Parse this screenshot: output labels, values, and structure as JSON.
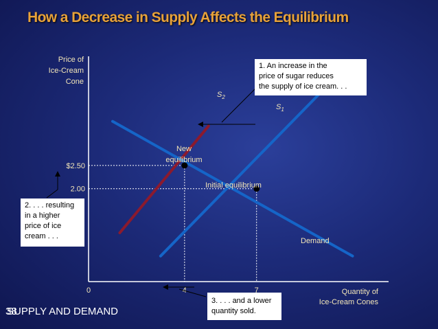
{
  "title": "How a Decrease in Supply Affects the Equilibrium",
  "chart_data": {
    "type": "line",
    "ylabel_lines": [
      "Price of",
      "Ice-Cream",
      "Cone"
    ],
    "xlabel_lines": [
      "Quantity of",
      "Ice-Cream Cones"
    ],
    "x_ticks": [
      "0",
      "4",
      "7"
    ],
    "y_ticks": [
      "$2.50",
      "2.00"
    ],
    "series": [
      {
        "name": "S2",
        "color": "#8b1a2e",
        "points": [
          [
            1.3,
            1.05
          ],
          [
            5.0,
            3.35
          ]
        ]
      },
      {
        "name": "S1",
        "color": "#1565c8",
        "points": [
          [
            3.0,
            0.55
          ],
          [
            10.2,
            4.35
          ]
        ]
      },
      {
        "name": "Demand",
        "color": "#1565c8",
        "points": [
          [
            1.0,
            3.45
          ],
          [
            11.0,
            0.55
          ]
        ]
      }
    ],
    "points": [
      {
        "label": "New equilibrium",
        "label_lines": [
          "New",
          "equilibrium"
        ],
        "x": 4,
        "y": 2.5
      },
      {
        "label": "Initial equilibrium",
        "x": 7,
        "y": 2.0
      }
    ],
    "curve_labels": {
      "s2": "S",
      "s2_sub": "2",
      "s1": "S",
      "s1_sub": "1",
      "demand": "Demand"
    },
    "axis_range": {
      "x": [
        0,
        12.5
      ],
      "y": [
        0,
        4.85
      ]
    },
    "annotations": {
      "callout1": [
        "1. An increase in the",
        "price of sugar reduces",
        "the supply of ice cream. . ."
      ],
      "callout2": [
        "2. . . . resulting",
        "in a higher",
        "price of ice",
        "cream . . ."
      ],
      "callout3": [
        "3. . . .  and a lower",
        "quantity sold."
      ]
    }
  },
  "footer": {
    "slide_number": "38",
    "text": "SUPPLY AND DEMAND"
  },
  "colors": {
    "title": "#e8a23a",
    "axis": "#ffffff",
    "label": "#f3e6b8",
    "s2_curve": "#8b1a2e",
    "s1_curve": "#1565c8",
    "demand_curve": "#1565c8",
    "arrow": "#000000"
  }
}
